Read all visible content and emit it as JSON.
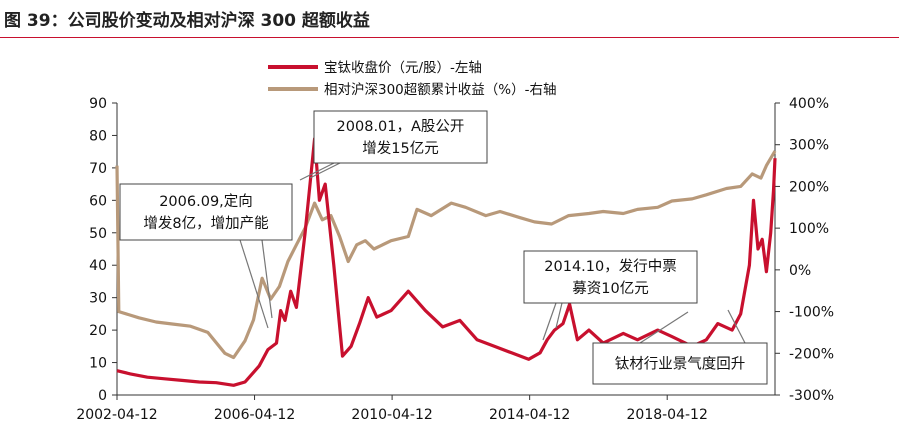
{
  "header": {
    "title": "图 39：公司股价变动及相对沪深 300 超额收益"
  },
  "colors": {
    "price": "#c8102e",
    "excess": "#b8997a",
    "rule": "#c8102e"
  },
  "chart_data": {
    "type": "line",
    "legend": [
      "宝钛收盘价（元/股）-左轴",
      "相对沪深300超额累计收益（%）-右轴"
    ],
    "legend_position": "top-center",
    "grid": false,
    "x_ticks": [
      "2002-04-12",
      "2006-04-12",
      "2010-04-12",
      "2014-04-12",
      "2018-04-12"
    ],
    "x_range": [
      "2002-04-12",
      "2021-05-31"
    ],
    "y_left": {
      "ticks": [
        "0",
        "10",
        "20",
        "30",
        "40",
        "50",
        "60",
        "70",
        "80",
        "90"
      ],
      "range": [
        0,
        90
      ]
    },
    "y_right": {
      "ticks": [
        "-300%",
        "-200%",
        "-100%",
        "0%",
        "100%",
        "200%",
        "300%",
        "400%"
      ],
      "range": [
        -300,
        400
      ]
    },
    "series": [
      {
        "name": "宝钛收盘价（元/股）-左轴",
        "axis": "left",
        "points": [
          [
            "2002-04-12",
            7.5
          ],
          [
            "2002-09-01",
            6.5
          ],
          [
            "2003-03-01",
            5.5
          ],
          [
            "2003-09-01",
            5
          ],
          [
            "2004-03-01",
            4.5
          ],
          [
            "2004-09-01",
            4
          ],
          [
            "2005-03-01",
            3.8
          ],
          [
            "2005-09-01",
            3
          ],
          [
            "2006-01-01",
            4
          ],
          [
            "2006-06-01",
            9
          ],
          [
            "2006-09-01",
            14
          ],
          [
            "2006-12-01",
            16
          ],
          [
            "2007-01-15",
            26
          ],
          [
            "2007-03-01",
            23
          ],
          [
            "2007-05-01",
            32
          ],
          [
            "2007-07-01",
            27
          ],
          [
            "2007-10-01",
            50
          ],
          [
            "2008-01-10",
            79
          ],
          [
            "2008-03-01",
            60
          ],
          [
            "2008-05-01",
            65
          ],
          [
            "2008-08-01",
            40
          ],
          [
            "2008-11-01",
            12
          ],
          [
            "2009-02-01",
            15
          ],
          [
            "2009-05-01",
            22
          ],
          [
            "2009-08-01",
            30
          ],
          [
            "2009-11-01",
            24
          ],
          [
            "2010-04-01",
            26
          ],
          [
            "2010-10-01",
            32
          ],
          [
            "2011-04-01",
            26
          ],
          [
            "2011-10-01",
            21
          ],
          [
            "2012-04-01",
            23
          ],
          [
            "2012-10-01",
            17
          ],
          [
            "2013-04-01",
            15
          ],
          [
            "2013-10-01",
            13
          ],
          [
            "2014-04-01",
            11
          ],
          [
            "2014-08-01",
            13
          ],
          [
            "2014-10-15",
            17
          ],
          [
            "2015-01-01",
            20
          ],
          [
            "2015-04-01",
            22
          ],
          [
            "2015-06-10",
            28
          ],
          [
            "2015-09-01",
            17
          ],
          [
            "2016-01-01",
            20
          ],
          [
            "2016-06-01",
            16
          ],
          [
            "2017-01-01",
            19
          ],
          [
            "2017-06-01",
            17
          ],
          [
            "2018-01-01",
            20
          ],
          [
            "2018-06-01",
            18
          ],
          [
            "2019-01-01",
            15
          ],
          [
            "2019-06-01",
            17
          ],
          [
            "2019-10-01",
            22
          ],
          [
            "2020-03-01",
            20
          ],
          [
            "2020-06-01",
            25
          ],
          [
            "2020-09-01",
            40
          ],
          [
            "2020-10-15",
            60
          ],
          [
            "2020-12-01",
            45
          ],
          [
            "2021-01-15",
            48
          ],
          [
            "2021-03-01",
            38
          ],
          [
            "2021-04-15",
            50
          ],
          [
            "2021-05-15",
            63
          ],
          [
            "2021-05-31",
            73
          ]
        ]
      },
      {
        "name": "相对沪深300超额累计收益（%）-右轴",
        "axis": "right",
        "points": [
          [
            "2002-04-12",
            250
          ],
          [
            "2002-05-01",
            -100
          ],
          [
            "2002-12-01",
            -115
          ],
          [
            "2003-06-01",
            -125
          ],
          [
            "2003-12-01",
            -130
          ],
          [
            "2004-06-01",
            -135
          ],
          [
            "2004-12-01",
            -150
          ],
          [
            "2005-06-01",
            -200
          ],
          [
            "2005-09-01",
            -210
          ],
          [
            "2006-01-01",
            -170
          ],
          [
            "2006-04-01",
            -120
          ],
          [
            "2006-07-01",
            -20
          ],
          [
            "2006-10-01",
            -70
          ],
          [
            "2007-01-01",
            -40
          ],
          [
            "2007-04-01",
            20
          ],
          [
            "2007-07-01",
            60
          ],
          [
            "2007-10-01",
            100
          ],
          [
            "2008-01-10",
            160
          ],
          [
            "2008-04-01",
            120
          ],
          [
            "2008-07-01",
            130
          ],
          [
            "2008-10-01",
            80
          ],
          [
            "2009-01-01",
            20
          ],
          [
            "2009-04-01",
            60
          ],
          [
            "2009-07-01",
            70
          ],
          [
            "2009-10-01",
            50
          ],
          [
            "2010-04-01",
            70
          ],
          [
            "2010-10-01",
            80
          ],
          [
            "2011-01-01",
            145
          ],
          [
            "2011-06-01",
            130
          ],
          [
            "2012-01-01",
            160
          ],
          [
            "2012-06-01",
            150
          ],
          [
            "2013-01-01",
            130
          ],
          [
            "2013-06-01",
            140
          ],
          [
            "2014-01-01",
            125
          ],
          [
            "2014-06-01",
            115
          ],
          [
            "2014-12-01",
            110
          ],
          [
            "2015-06-01",
            130
          ],
          [
            "2016-01-01",
            135
          ],
          [
            "2016-06-01",
            140
          ],
          [
            "2017-01-01",
            135
          ],
          [
            "2017-06-01",
            145
          ],
          [
            "2018-01-01",
            150
          ],
          [
            "2018-06-01",
            165
          ],
          [
            "2019-01-01",
            170
          ],
          [
            "2019-06-01",
            180
          ],
          [
            "2020-01-01",
            195
          ],
          [
            "2020-06-01",
            200
          ],
          [
            "2020-10-01",
            230
          ],
          [
            "2021-01-01",
            220
          ],
          [
            "2021-03-01",
            250
          ],
          [
            "2021-05-31",
            285
          ]
        ]
      }
    ],
    "annotations": [
      {
        "lines": [
          "2008.01，A股公开",
          "增发15亿元"
        ]
      },
      {
        "lines": [
          "2006.09,定向",
          "增发8亿，增加产能"
        ]
      },
      {
        "lines": [
          "2014.10，发行中票",
          "募资10亿元"
        ]
      },
      {
        "lines": [
          "钛材行业景气度回升"
        ]
      }
    ]
  }
}
